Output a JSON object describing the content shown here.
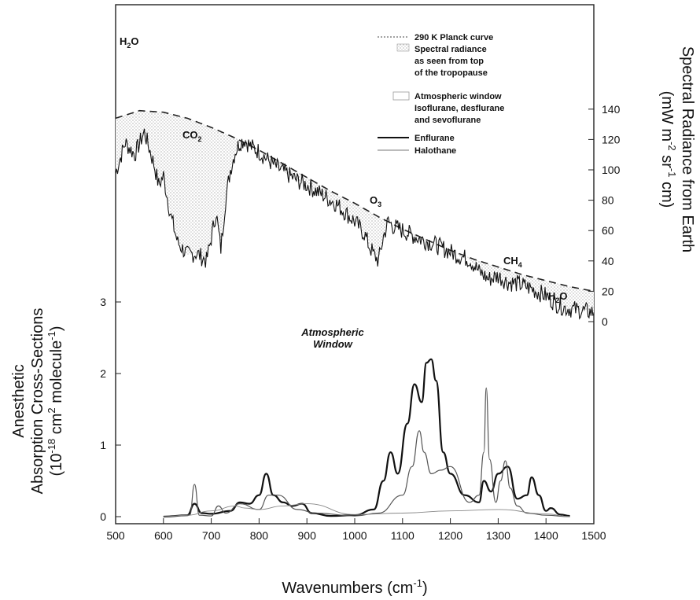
{
  "chart_data": {
    "type": "line",
    "xlabel": "Wavenumbers (cm",
    "xlabel_sup": "-1",
    "xlabel_tail": ")",
    "xlim": [
      500,
      1500
    ],
    "x_ticks": [
      500,
      600,
      700,
      800,
      900,
      1000,
      1100,
      1200,
      1300,
      1400,
      1500
    ],
    "left_axis": {
      "label_line1": "Anesthetic",
      "label_line2": "Absorption Cross-Sections",
      "label_line3": "(10^-18 cm^2 molecule^-1)",
      "ylim": [
        -0.2,
        3.4
      ],
      "ticks": [
        0,
        1,
        2,
        3
      ]
    },
    "right_axis": {
      "label_line1": "Spectral Radiance from Earth",
      "label_line2": "(mW m^-2 sr^-1 cm)",
      "ylim": [
        -5,
        148
      ],
      "ticks": [
        0,
        20,
        40,
        60,
        80,
        100,
        120,
        140
      ]
    },
    "legend": {
      "position": "top-right",
      "entries": [
        "290 K Planck curve",
        "Spectral radiance",
        "as seen from top",
        "of the tropopause",
        "Atmospheric window",
        "Isoflurane, desflurane",
        "and sevoflurane",
        "Enflurane",
        "Halothane"
      ]
    },
    "annotations": {
      "h2o_left": "H2O",
      "co2": "CO2",
      "o3": "O3",
      "ch4": "CH4",
      "h2o_right": "H2O",
      "window_line1": "Atmospheric",
      "window_line2": "Window"
    },
    "series": [
      {
        "name": "290 K Planck curve",
        "axis": "right",
        "x": [
          500,
          550,
          600,
          650,
          700,
          750,
          800,
          850,
          900,
          950,
          1000,
          1050,
          1100,
          1150,
          1200,
          1250,
          1300,
          1350,
          1400,
          1450,
          1500
        ],
        "y": [
          134,
          139,
          138,
          134,
          128,
          121,
          113,
          104,
          95,
          86,
          78,
          69,
          61,
          54,
          47,
          41,
          36,
          31,
          27,
          23,
          20
        ]
      },
      {
        "name": "Spectral radiance as seen from top of the tropopause",
        "axis": "right",
        "x": [
          500,
          520,
          540,
          560,
          580,
          590,
          600,
          615,
          630,
          650,
          670,
          690,
          700,
          710,
          720,
          730,
          740,
          750,
          760,
          770,
          780,
          800,
          820,
          840,
          860,
          880,
          900,
          920,
          940,
          960,
          980,
          1000,
          1020,
          1030,
          1040,
          1050,
          1060,
          1070,
          1080,
          1100,
          1120,
          1140,
          1160,
          1180,
          1200,
          1220,
          1240,
          1260,
          1280,
          1300,
          1320,
          1340,
          1360,
          1380,
          1400,
          1420,
          1440,
          1460,
          1480,
          1500
        ],
        "y": [
          98,
          118,
          110,
          125,
          104,
          90,
          96,
          70,
          52,
          44,
          45,
          40,
          55,
          72,
          48,
          80,
          100,
          112,
          118,
          120,
          116,
          112,
          106,
          101,
          97,
          93,
          90,
          86,
          82,
          78,
          72,
          66,
          58,
          50,
          44,
          40,
          56,
          66,
          63,
          60,
          57,
          54,
          52,
          49,
          46,
          43,
          41,
          33,
          28,
          30,
          26,
          25,
          23,
          20,
          17,
          12,
          9,
          8,
          7,
          6
        ]
      },
      {
        "name": "Isoflurane, desflurane and sevoflurane",
        "axis": "left",
        "x": [
          600,
          650,
          665,
          680,
          700,
          740,
          760,
          780,
          800,
          815,
          830,
          850,
          870,
          890,
          910,
          950,
          1000,
          1040,
          1060,
          1075,
          1090,
          1110,
          1125,
          1140,
          1150,
          1160,
          1170,
          1185,
          1200,
          1230,
          1260,
          1270,
          1285,
          1300,
          1320,
          1340,
          1360,
          1370,
          1385,
          1400,
          1410,
          1430,
          1450
        ],
        "y": [
          0,
          0.02,
          0.18,
          0.05,
          0.04,
          0.08,
          0.2,
          0.18,
          0.3,
          0.6,
          0.3,
          0.2,
          0.15,
          0.18,
          0.05,
          0.01,
          0.02,
          0.1,
          0.5,
          0.9,
          0.6,
          1.3,
          1.85,
          1.6,
          2.15,
          2.2,
          1.9,
          0.9,
          0.6,
          0.3,
          0.2,
          0.5,
          0.35,
          0.6,
          0.7,
          0.25,
          0.3,
          0.55,
          0.3,
          0.08,
          0.12,
          0.03,
          0.01
        ]
      },
      {
        "name": "Enflurane",
        "axis": "left",
        "x": [
          600,
          655,
          665,
          675,
          700,
          715,
          730,
          760,
          800,
          820,
          840,
          880,
          920,
          1000,
          1050,
          1100,
          1120,
          1135,
          1145,
          1160,
          1180,
          1200,
          1240,
          1260,
          1270,
          1275,
          1282,
          1295,
          1305,
          1315,
          1325,
          1340,
          1360,
          1400,
          1450
        ],
        "y": [
          0,
          0.02,
          0.45,
          0.02,
          0.01,
          0.15,
          0.05,
          0.18,
          0.1,
          0.3,
          0.3,
          0.1,
          0.05,
          0.01,
          0.05,
          0.3,
          0.7,
          1.2,
          0.9,
          0.6,
          0.65,
          0.7,
          0.2,
          0.3,
          0.9,
          1.8,
          0.8,
          0.2,
          0.5,
          0.78,
          0.4,
          0.15,
          0.05,
          0.02,
          0
        ]
      },
      {
        "name": "Halothane",
        "axis": "left",
        "x": [
          600,
          650,
          700,
          750,
          770,
          800,
          850,
          900,
          1000,
          1100,
          1200,
          1300,
          1400,
          1450
        ],
        "y": [
          0,
          0.02,
          0.08,
          0.15,
          0.12,
          0.1,
          0.15,
          0.18,
          0.03,
          0.05,
          0.08,
          0.1,
          0.04,
          0
        ]
      }
    ]
  }
}
